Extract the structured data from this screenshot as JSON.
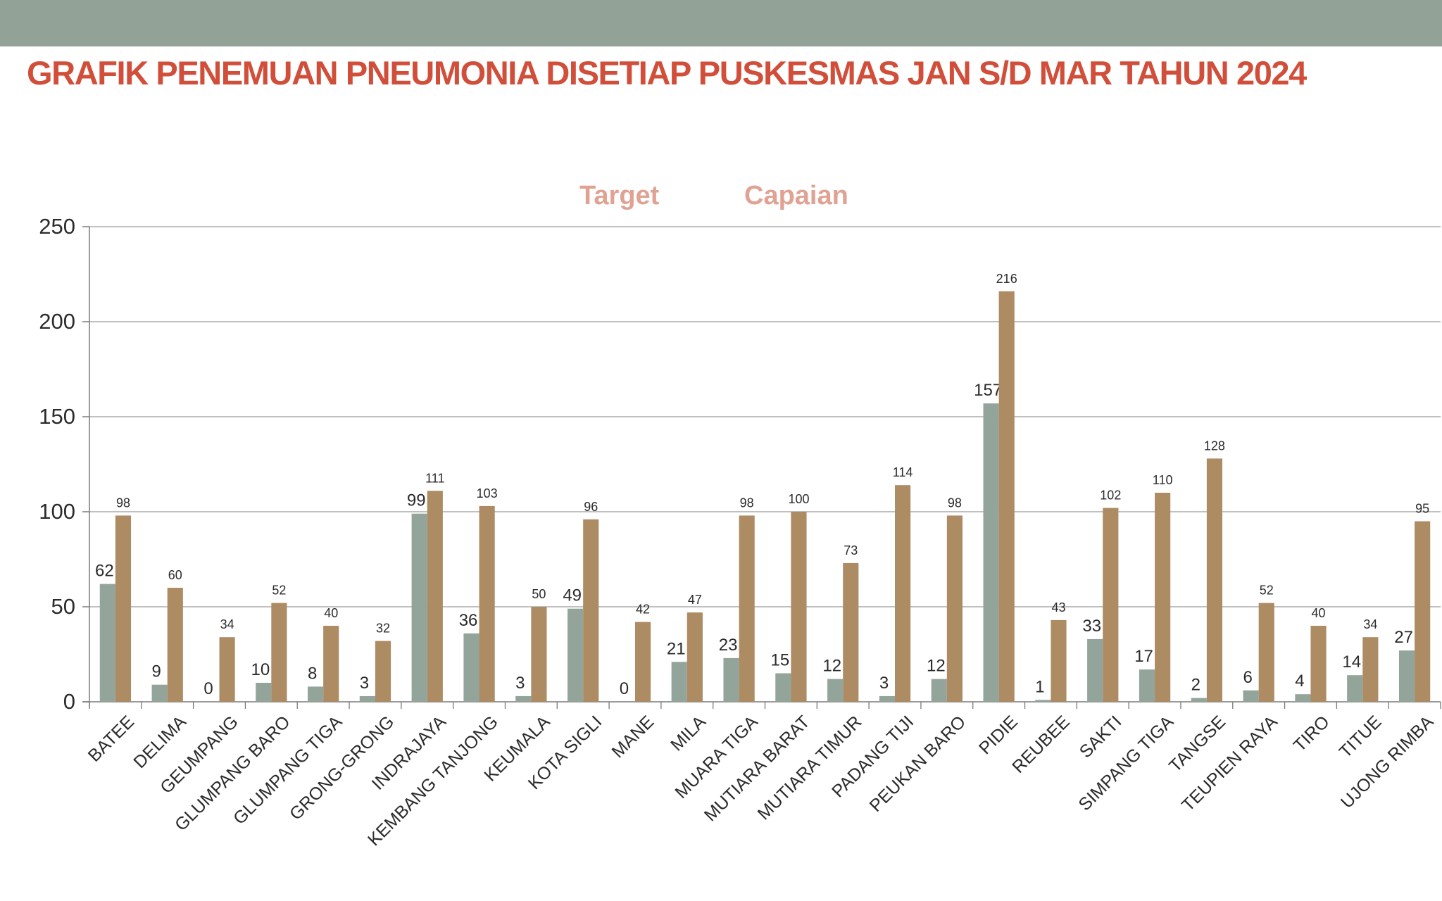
{
  "header": {
    "title": "GRAFIK PENEMUAN PNEUMONIA  DISETIAP PUSKESMAS JAN S/D MAR TAHUN 2024"
  },
  "colors": {
    "band": "#92a296",
    "title": "#d14f3a",
    "legend_text": "#e0a393",
    "series_target": "#93a59a",
    "series_capaian": "#ad8b63",
    "gridline": "#9a9a9a"
  },
  "chart_data": {
    "type": "bar",
    "title": "",
    "xlabel": "",
    "ylabel": "",
    "ylim": [
      0,
      250
    ],
    "yticks": [
      0,
      50,
      100,
      150,
      200,
      250
    ],
    "grid": true,
    "legend_position": "top",
    "categories": [
      "BATEE",
      "DELIMA",
      "GEUMPANG",
      "GLUMPANG BARO",
      "GLUMPANG TIGA",
      "GRONG-GRONG",
      "INDRAJAYA",
      "KEMBANG TANJONG",
      "KEUMALA",
      "KOTA SIGLI",
      "MANE",
      "MILA",
      "MUARA TIGA",
      "MUTIARA BARAT",
      "MUTIARA TIMUR",
      "PADANG TIJI",
      "PEUKAN BARO",
      "PIDIE",
      "REUBEE",
      "SAKTI",
      "SIMPANG TIGA",
      "TANGSE",
      "TEUPIEN RAYA",
      "TIRO",
      "TITUE",
      "UJONG RIMBA"
    ],
    "series": [
      {
        "name": "Target",
        "values": [
          62,
          9,
          0,
          10,
          8,
          3,
          99,
          36,
          3,
          49,
          0,
          21,
          23,
          15,
          12,
          3,
          12,
          157,
          1,
          33,
          17,
          2,
          6,
          4,
          14,
          27
        ]
      },
      {
        "name": "Capaian",
        "values": [
          98,
          60,
          34,
          52,
          40,
          32,
          111,
          103,
          50,
          96,
          42,
          47,
          98,
          100,
          73,
          114,
          98,
          216,
          43,
          102,
          110,
          128,
          52,
          40,
          34,
          95
        ]
      }
    ]
  }
}
